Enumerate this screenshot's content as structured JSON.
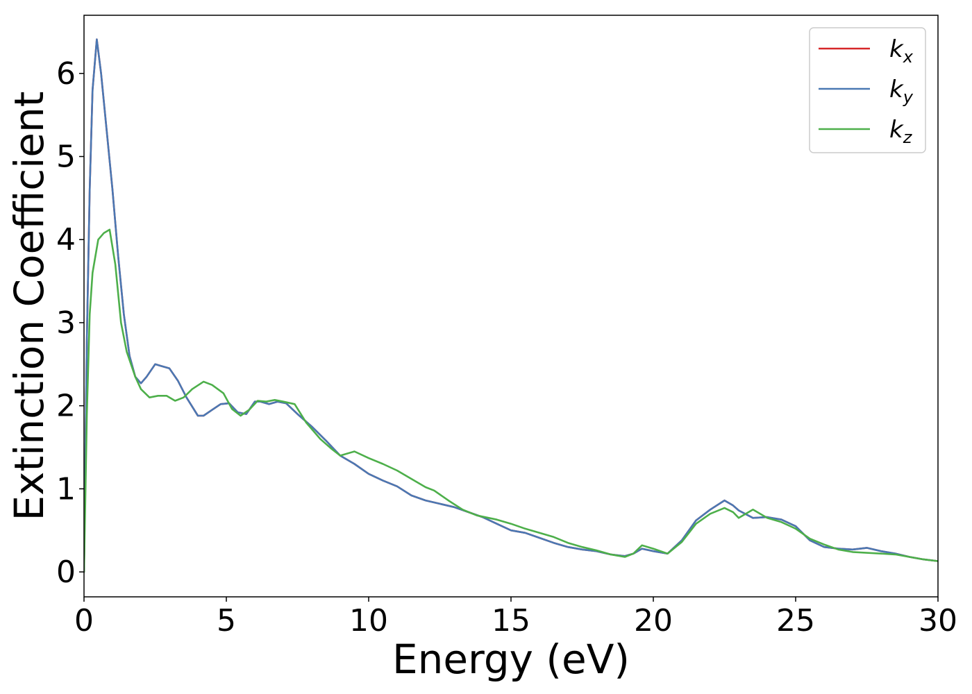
{
  "chart_data": {
    "type": "line",
    "title": "",
    "xlabel": "Energy (eV)",
    "ylabel": "Extinction Coefficient",
    "xlim": [
      0,
      30
    ],
    "ylim": [
      -0.3,
      6.7
    ],
    "xticks": [
      0,
      5,
      10,
      15,
      20,
      25,
      30
    ],
    "yticks": [
      0,
      1,
      2,
      3,
      4,
      5,
      6
    ],
    "grid": false,
    "legend_position": "top-right",
    "series": [
      {
        "name": "k",
        "subscript": "x",
        "color": "#d62728",
        "x": [
          0,
          0.1,
          0.2,
          0.3,
          0.45,
          0.6,
          0.8,
          1.0,
          1.2,
          1.4,
          1.6,
          1.8,
          2.0,
          2.2,
          2.5,
          2.7,
          3.0,
          3.3,
          3.6,
          4.0,
          4.2,
          4.5,
          4.8,
          5.1,
          5.4,
          5.7,
          6.0,
          6.2,
          6.5,
          6.8,
          7.1,
          7.5,
          8.0,
          8.5,
          9.0,
          9.5,
          10.0,
          10.5,
          11.0,
          11.5,
          12.0,
          12.5,
          13.0,
          13.5,
          14.0,
          14.5,
          15.0,
          15.5,
          16.0,
          16.5,
          17.0,
          17.5,
          18.0,
          18.5,
          19.0,
          19.3,
          19.6,
          20.0,
          20.5,
          21.0,
          21.5,
          22.0,
          22.5,
          22.8,
          23.0,
          23.5,
          24.0,
          24.5,
          25.0,
          25.5,
          26.0,
          26.5,
          27.0,
          27.5,
          28.0,
          28.5,
          29.0,
          29.5,
          30.0
        ],
        "y": [
          0,
          2.8,
          4.6,
          5.8,
          6.41,
          6.0,
          5.3,
          4.6,
          3.8,
          3.1,
          2.6,
          2.35,
          2.27,
          2.35,
          2.5,
          2.48,
          2.45,
          2.3,
          2.1,
          1.88,
          1.88,
          1.95,
          2.02,
          2.03,
          1.92,
          1.9,
          2.05,
          2.05,
          2.02,
          2.05,
          2.03,
          1.9,
          1.75,
          1.58,
          1.4,
          1.3,
          1.18,
          1.1,
          1.03,
          0.92,
          0.86,
          0.82,
          0.78,
          0.72,
          0.66,
          0.58,
          0.5,
          0.47,
          0.41,
          0.35,
          0.3,
          0.27,
          0.25,
          0.21,
          0.19,
          0.22,
          0.28,
          0.25,
          0.22,
          0.38,
          0.62,
          0.75,
          0.86,
          0.8,
          0.74,
          0.65,
          0.66,
          0.63,
          0.55,
          0.38,
          0.3,
          0.28,
          0.27,
          0.29,
          0.25,
          0.22,
          0.18,
          0.15,
          0.13
        ]
      },
      {
        "name": "k",
        "subscript": "y",
        "color": "#4a78b3",
        "x": [
          0,
          0.1,
          0.2,
          0.3,
          0.45,
          0.6,
          0.8,
          1.0,
          1.2,
          1.4,
          1.6,
          1.8,
          2.0,
          2.2,
          2.5,
          2.7,
          3.0,
          3.3,
          3.6,
          4.0,
          4.2,
          4.5,
          4.8,
          5.1,
          5.4,
          5.7,
          6.0,
          6.2,
          6.5,
          6.8,
          7.1,
          7.5,
          8.0,
          8.5,
          9.0,
          9.5,
          10.0,
          10.5,
          11.0,
          11.5,
          12.0,
          12.5,
          13.0,
          13.5,
          14.0,
          14.5,
          15.0,
          15.5,
          16.0,
          16.5,
          17.0,
          17.5,
          18.0,
          18.5,
          19.0,
          19.3,
          19.6,
          20.0,
          20.5,
          21.0,
          21.5,
          22.0,
          22.5,
          22.8,
          23.0,
          23.5,
          24.0,
          24.5,
          25.0,
          25.5,
          26.0,
          26.5,
          27.0,
          27.5,
          28.0,
          28.5,
          29.0,
          29.5,
          30.0
        ],
        "y": [
          0,
          2.8,
          4.6,
          5.8,
          6.41,
          6.0,
          5.3,
          4.6,
          3.8,
          3.1,
          2.6,
          2.35,
          2.27,
          2.35,
          2.5,
          2.48,
          2.45,
          2.3,
          2.1,
          1.88,
          1.88,
          1.95,
          2.02,
          2.03,
          1.92,
          1.9,
          2.05,
          2.05,
          2.02,
          2.05,
          2.03,
          1.9,
          1.75,
          1.58,
          1.4,
          1.3,
          1.18,
          1.1,
          1.03,
          0.92,
          0.86,
          0.82,
          0.78,
          0.72,
          0.66,
          0.58,
          0.5,
          0.47,
          0.41,
          0.35,
          0.3,
          0.27,
          0.25,
          0.21,
          0.19,
          0.22,
          0.28,
          0.25,
          0.22,
          0.38,
          0.62,
          0.75,
          0.86,
          0.8,
          0.74,
          0.65,
          0.66,
          0.63,
          0.55,
          0.38,
          0.3,
          0.28,
          0.27,
          0.29,
          0.25,
          0.22,
          0.18,
          0.15,
          0.13
        ]
      },
      {
        "name": "k",
        "subscript": "z",
        "color": "#4daf4a",
        "x": [
          0,
          0.1,
          0.2,
          0.3,
          0.5,
          0.7,
          0.9,
          1.1,
          1.3,
          1.5,
          1.8,
          2.0,
          2.3,
          2.6,
          2.9,
          3.2,
          3.5,
          3.8,
          4.2,
          4.5,
          4.9,
          5.2,
          5.5,
          5.8,
          6.1,
          6.4,
          6.7,
          7.0,
          7.4,
          7.8,
          8.3,
          8.7,
          9.0,
          9.5,
          10.0,
          10.5,
          11.0,
          11.5,
          12.0,
          12.3,
          12.8,
          13.3,
          13.8,
          14.5,
          15.0,
          15.5,
          16.0,
          16.5,
          17.0,
          17.5,
          18.0,
          18.5,
          19.0,
          19.3,
          19.6,
          20.0,
          20.5,
          21.0,
          21.5,
          22.0,
          22.5,
          22.8,
          23.0,
          23.5,
          24.0,
          24.5,
          25.0,
          25.5,
          26.0,
          26.5,
          27.0,
          27.5,
          28.0,
          28.5,
          29.0,
          29.5,
          30.0
        ],
        "y": [
          0,
          1.9,
          3.1,
          3.6,
          4.0,
          4.08,
          4.12,
          3.7,
          3.0,
          2.65,
          2.35,
          2.2,
          2.1,
          2.12,
          2.12,
          2.06,
          2.1,
          2.2,
          2.29,
          2.25,
          2.15,
          1.96,
          1.88,
          1.95,
          2.06,
          2.05,
          2.07,
          2.05,
          2.02,
          1.8,
          1.6,
          1.48,
          1.4,
          1.45,
          1.37,
          1.3,
          1.22,
          1.12,
          1.02,
          0.98,
          0.86,
          0.75,
          0.68,
          0.63,
          0.58,
          0.52,
          0.47,
          0.42,
          0.35,
          0.3,
          0.26,
          0.21,
          0.18,
          0.22,
          0.32,
          0.28,
          0.22,
          0.36,
          0.58,
          0.7,
          0.77,
          0.72,
          0.65,
          0.75,
          0.65,
          0.6,
          0.52,
          0.4,
          0.33,
          0.27,
          0.24,
          0.23,
          0.22,
          0.21,
          0.18,
          0.15,
          0.13
        ]
      }
    ]
  }
}
